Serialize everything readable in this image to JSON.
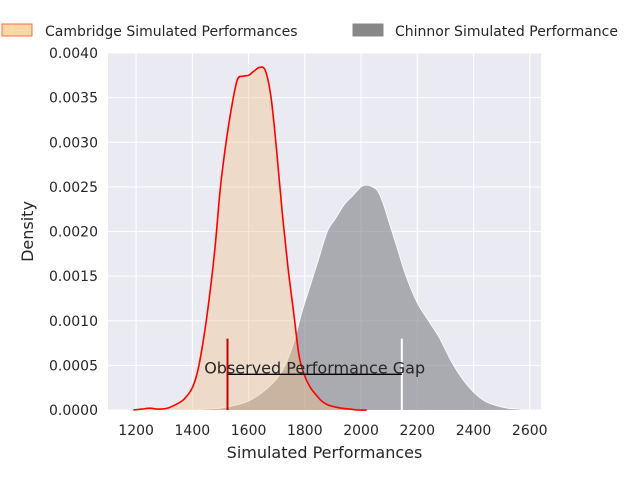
{
  "chart_data": {
    "type": "area",
    "title": "",
    "xlabel": "Simulated Performances",
    "ylabel": "Density",
    "xlim": [
      1100,
      2640
    ],
    "ylim": [
      0,
      0.004
    ],
    "xticks": [
      1200,
      1400,
      1600,
      1800,
      2000,
      2200,
      2400,
      2600
    ],
    "xtick_labels": [
      "1200",
      "1400",
      "1600",
      "1800",
      "2000",
      "2200",
      "2400",
      "2600"
    ],
    "yticks": [
      0,
      0.0005,
      0.001,
      0.0015,
      0.002,
      0.0025,
      0.003,
      0.0035,
      0.004
    ],
    "ytick_labels": [
      "0.0000",
      "0.0005",
      "0.0010",
      "0.0015",
      "0.0020",
      "0.0025",
      "0.0030",
      "0.0035",
      "0.0040"
    ],
    "grid": true,
    "legend_position": "top",
    "series": [
      {
        "name": "Cambridge Simulated Performances",
        "fill": "#f5c48a",
        "stroke": "#ff0000",
        "x": [
          1190,
          1220,
          1250,
          1280,
          1310,
          1340,
          1370,
          1400,
          1420,
          1440,
          1460,
          1480,
          1500,
          1520,
          1540,
          1560,
          1580,
          1600,
          1620,
          1640,
          1660,
          1680,
          1700,
          1720,
          1740,
          1760,
          1780,
          1800,
          1820,
          1840,
          1860,
          1880,
          1900,
          1930,
          1960,
          1990,
          2020
        ],
        "y": [
          0.0,
          1e-05,
          2e-05,
          1e-05,
          2e-05,
          6e-05,
          0.00012,
          0.00025,
          0.00045,
          0.0008,
          0.00125,
          0.0018,
          0.0025,
          0.003,
          0.0034,
          0.0037,
          0.00374,
          0.00375,
          0.0038,
          0.00384,
          0.0038,
          0.0035,
          0.0029,
          0.0022,
          0.0016,
          0.0011,
          0.0006,
          0.00038,
          0.00025,
          0.00017,
          0.0001,
          6e-05,
          4e-05,
          2e-05,
          1e-05,
          0.0,
          0.0
        ]
      },
      {
        "name": "Chinnor Simulated Performance",
        "fill": "#7f7f86",
        "stroke": "#ffffff",
        "x": [
          1400,
          1450,
          1500,
          1550,
          1600,
          1650,
          1700,
          1730,
          1760,
          1790,
          1820,
          1850,
          1880,
          1910,
          1940,
          1970,
          2000,
          2020,
          2040,
          2060,
          2080,
          2100,
          2130,
          2160,
          2200,
          2240,
          2280,
          2320,
          2360,
          2400,
          2440,
          2480,
          2520,
          2560,
          2580
        ],
        "y": [
          0.0,
          1e-05,
          2e-05,
          5e-05,
          0.0001,
          0.0002,
          0.00035,
          0.0005,
          0.00075,
          0.0011,
          0.0014,
          0.0017,
          0.002,
          0.00215,
          0.0023,
          0.0024,
          0.0025,
          0.00252,
          0.0025,
          0.00245,
          0.0023,
          0.0021,
          0.0018,
          0.0015,
          0.0012,
          0.001,
          0.0008,
          0.00055,
          0.00035,
          0.0002,
          0.0001,
          5e-05,
          2e-05,
          1e-05,
          0.0
        ]
      }
    ],
    "annotation": {
      "text": "Observed Performance Gap",
      "x_start": 1525,
      "x_end": 2145,
      "y": 0.0004,
      "marker_height": 0.0008,
      "start_marker_color": "#cc0000",
      "end_marker_color": "#ffffff",
      "line_color": "#000000"
    }
  },
  "colors": {
    "plot_background": "#eaeaf2",
    "grid": "#ffffff",
    "text": "#262626"
  }
}
